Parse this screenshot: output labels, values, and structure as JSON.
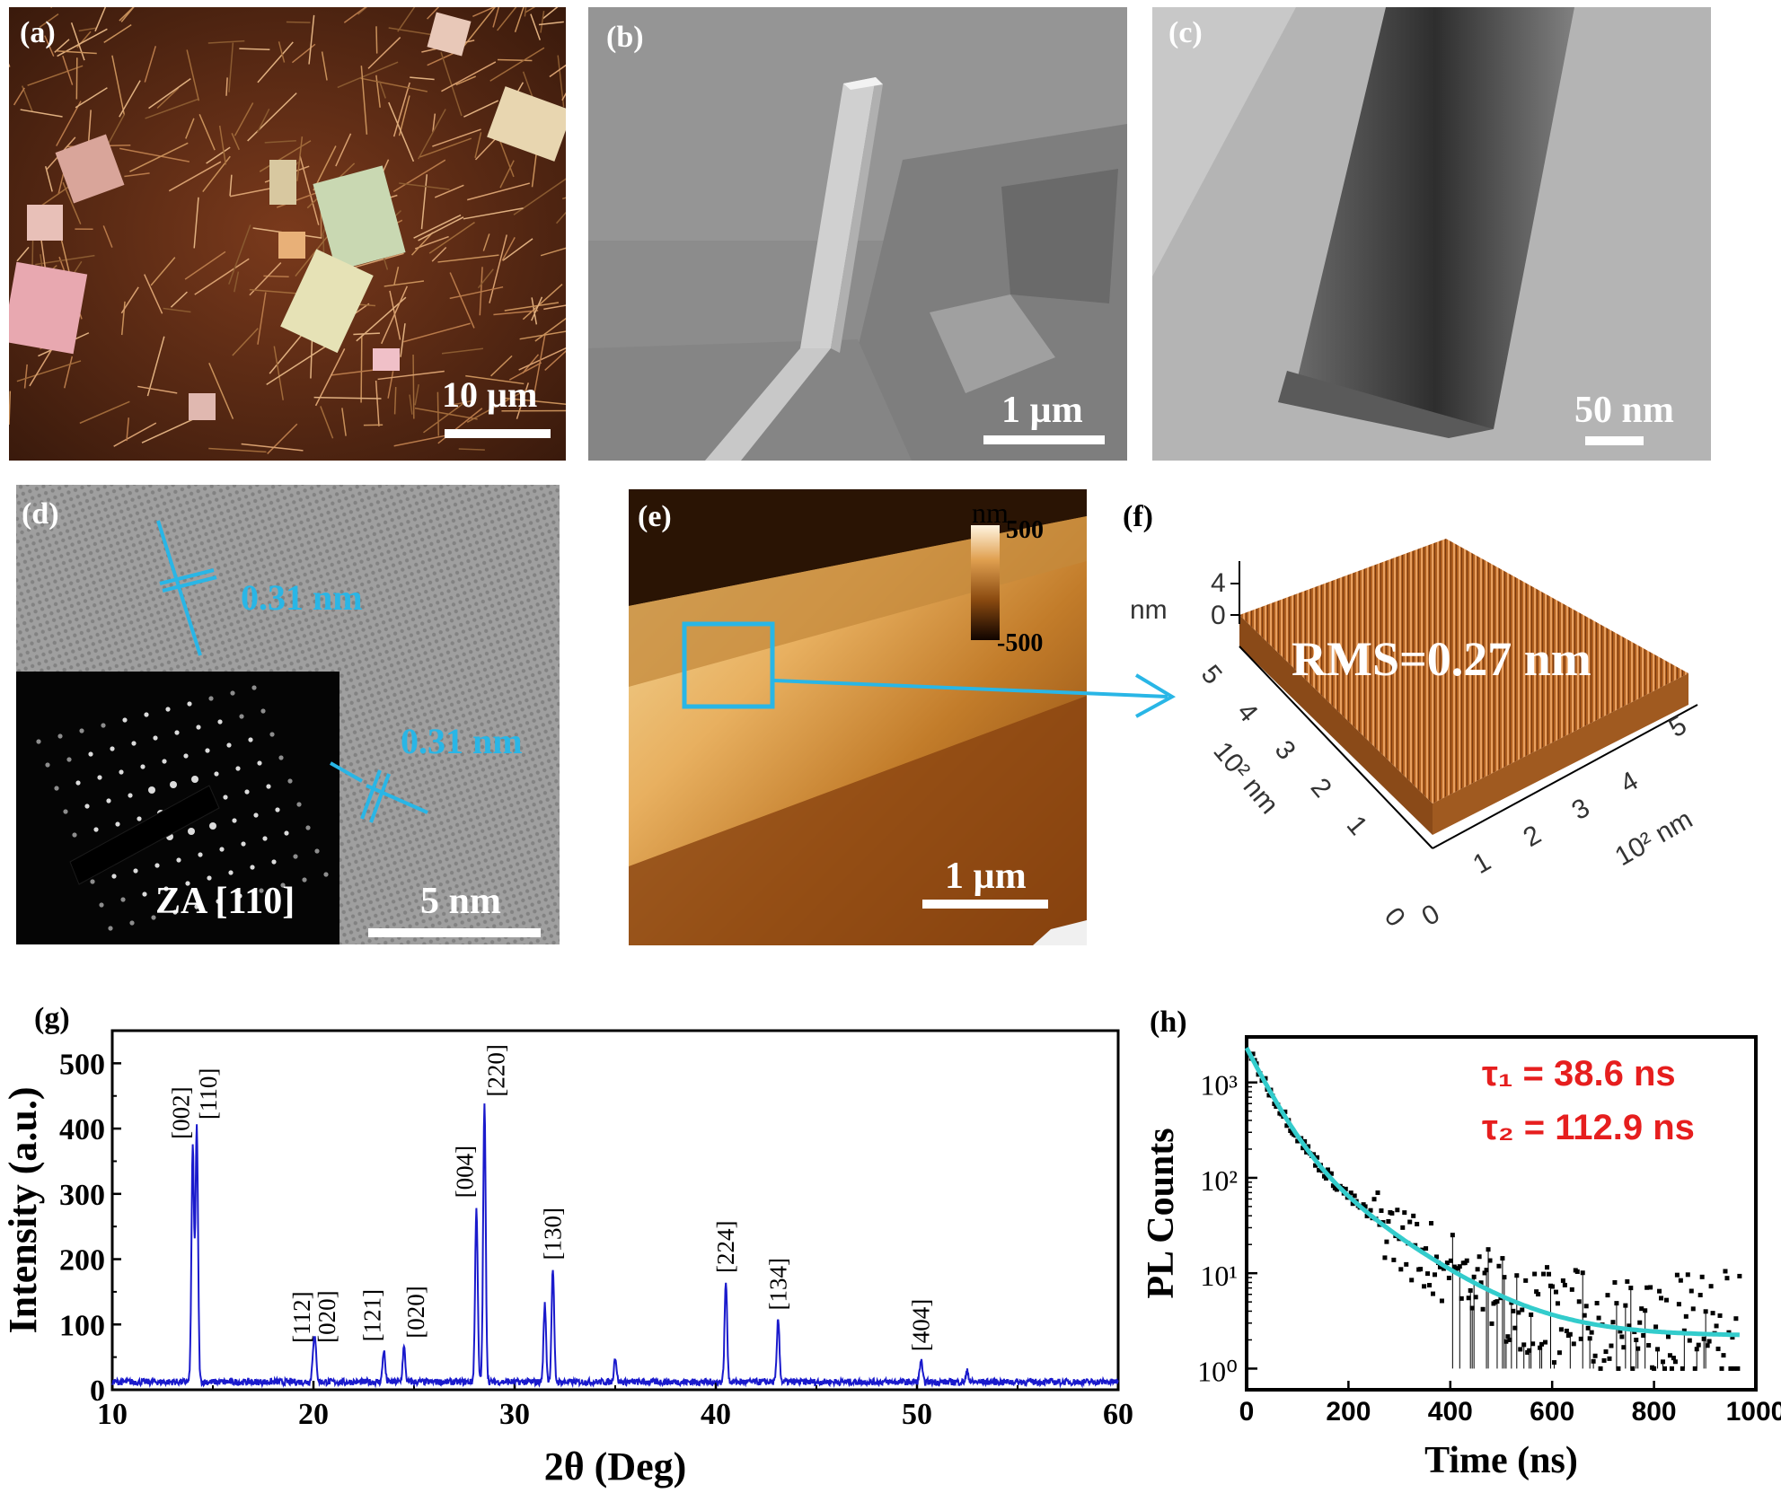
{
  "panels": {
    "a": {
      "label": "(a)",
      "scale": "10 µm"
    },
    "b": {
      "label": "(b)",
      "scale": "1 µm"
    },
    "c": {
      "label": "(c)",
      "scale": "50 nm"
    },
    "d": {
      "label": "(d)",
      "spacing1": "0.31 nm",
      "spacing2": "0.31 nm",
      "inset": "ZA [110]",
      "scale": "5 nm"
    },
    "e": {
      "label": "(e)",
      "cbar_unit": "nm",
      "cbar_max": "500",
      "cbar_min": "-500",
      "scale": "1 µm"
    },
    "f": {
      "label": "(f)",
      "rms": "RMS=0.27 nm",
      "z_unit": "nm",
      "z_ticks": [
        "4",
        "0"
      ],
      "y_ticks": [
        "5",
        "4",
        "3",
        "2",
        "1",
        "0"
      ],
      "x_ticks": [
        "0",
        "1",
        "2",
        "3",
        "4",
        "5"
      ],
      "y_unit": "10² nm",
      "x_unit": "10² nm"
    },
    "g": {
      "label": "(g)"
    },
    "h": {
      "label": "(h)",
      "tau1": "τ₁ = 38.6 ns",
      "tau2": "τ₂ = 112.9 ns"
    }
  },
  "chart_data": [
    {
      "type": "line",
      "panel": "g",
      "xlabel": "2θ (Deg)",
      "ylabel": "Intensity (a.u.)",
      "xlim": [
        10,
        60
      ],
      "ylim": [
        0,
        550
      ],
      "xticks": [
        10,
        20,
        30,
        40,
        50,
        60
      ],
      "yticks": [
        0,
        100,
        200,
        300,
        400,
        500
      ],
      "color": "#1a1acc",
      "baseline": 12,
      "peaks": [
        {
          "x": 14.0,
          "y": 370,
          "label": "[002]"
        },
        {
          "x": 14.2,
          "y": 400,
          "label": "[110]"
        },
        {
          "x": 20.0,
          "y": 58,
          "label": "[112]"
        },
        {
          "x": 20.1,
          "y": 58,
          "label": "[020]"
        },
        {
          "x": 23.5,
          "y": 60,
          "label": "[121]"
        },
        {
          "x": 24.5,
          "y": 65,
          "label": "[020]"
        },
        {
          "x": 28.1,
          "y": 280,
          "label": "[004]"
        },
        {
          "x": 28.5,
          "y": 435,
          "label": "[220]"
        },
        {
          "x": 31.5,
          "y": 130,
          "label": ""
        },
        {
          "x": 31.9,
          "y": 185,
          "label": "[130]"
        },
        {
          "x": 35.0,
          "y": 50,
          "label": ""
        },
        {
          "x": 40.5,
          "y": 165,
          "label": "[224]"
        },
        {
          "x": 43.1,
          "y": 108,
          "label": "[134]"
        },
        {
          "x": 50.2,
          "y": 45,
          "label": "[404]"
        },
        {
          "x": 52.5,
          "y": 28,
          "label": ""
        }
      ]
    },
    {
      "type": "scatter",
      "panel": "h",
      "xlabel": "Time (ns)",
      "ylabel": "PL Counts",
      "xlim": [
        0,
        1000
      ],
      "yscale": "log",
      "ylim": [
        0.6,
        3000
      ],
      "xticks": [
        0,
        200,
        400,
        600,
        800,
        1000
      ],
      "yticks": [
        "10⁰",
        "10¹",
        "10²",
        "10³"
      ],
      "series": [
        {
          "kind": "fit",
          "color": "#33cccc",
          "A1": 2000,
          "tau1": 38.6,
          "A2": 300,
          "tau2": 112.9,
          "offset": 2.2
        },
        {
          "kind": "data",
          "color": "#000000"
        }
      ]
    }
  ]
}
